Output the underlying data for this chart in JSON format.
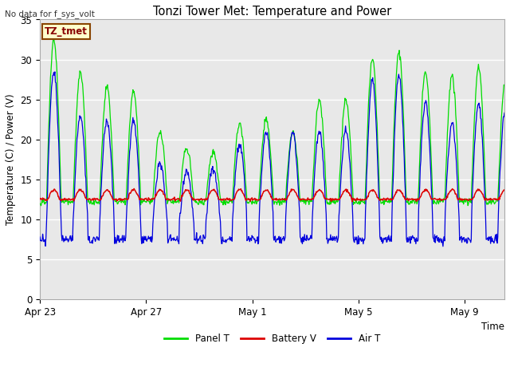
{
  "title": "Tonzi Tower Met: Temperature and Power",
  "ylabel": "Temperature (C) / Power (V)",
  "xlabel": "Time",
  "no_data_text": "No data for f_sys_volt",
  "legend_label": "TZ_tmet",
  "ylim": [
    0,
    35
  ],
  "yticks": [
    0,
    5,
    10,
    15,
    20,
    25,
    30,
    35
  ],
  "xtick_labels": [
    "Apr 23",
    "Apr 27",
    "May 1",
    "May 5",
    "May 9"
  ],
  "xtick_positions": [
    0,
    4,
    8,
    12,
    16
  ],
  "legend_entries": [
    "Panel T",
    "Battery V",
    "Air T"
  ],
  "legend_colors": [
    "#00dd00",
    "#dd0000",
    "#0000dd"
  ],
  "plot_bg_color": "#e8e8e8",
  "fig_bg_color": "#ffffff",
  "grid_color": "#ffffff",
  "figsize": [
    6.4,
    4.8
  ],
  "dpi": 100
}
